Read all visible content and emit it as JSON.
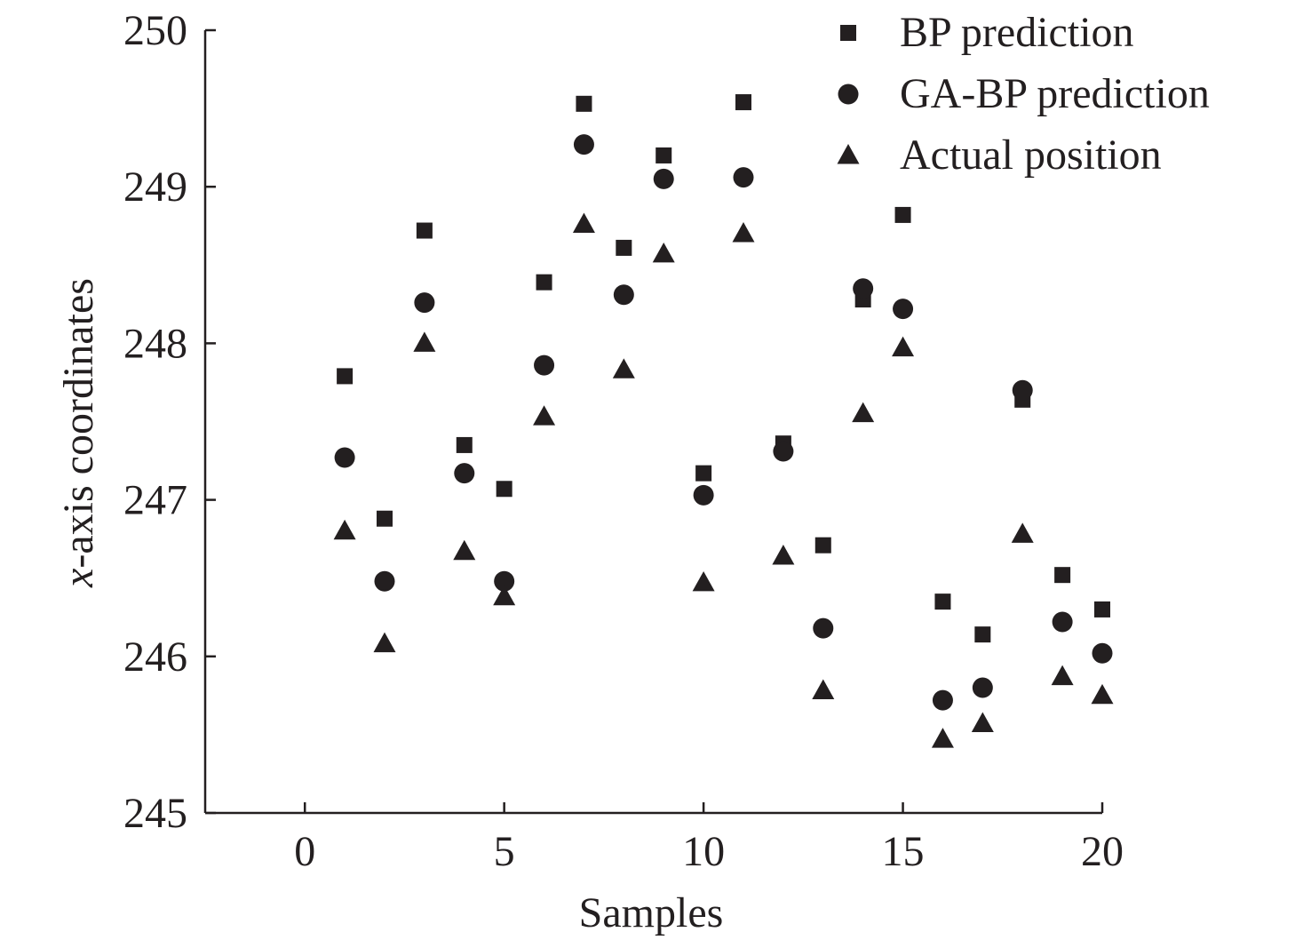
{
  "chart_data": {
    "type": "scatter",
    "title": "",
    "xlabel": "Samples",
    "ylabel_italic": "x",
    "ylabel_rest": "-axis coordinates",
    "xlim": [
      -2.5,
      20
    ],
    "ylim": [
      245,
      250
    ],
    "xticks": [
      0,
      5,
      10,
      15,
      20
    ],
    "yticks": [
      245,
      246,
      247,
      248,
      249,
      250
    ],
    "grid": false,
    "legend_position": "top-right",
    "x": [
      1,
      2,
      3,
      4,
      5,
      6,
      7,
      8,
      9,
      10,
      11,
      12,
      13,
      14,
      15,
      16,
      17,
      18,
      19,
      20
    ],
    "series": [
      {
        "name": "BP prediction",
        "marker": "square",
        "values": [
          247.79,
          246.88,
          248.72,
          247.35,
          247.07,
          248.39,
          249.53,
          248.61,
          249.2,
          247.17,
          249.54,
          247.36,
          246.71,
          248.28,
          248.82,
          246.35,
          246.14,
          247.64,
          246.52,
          246.3
        ]
      },
      {
        "name": "GA-BP prediction",
        "marker": "circle",
        "values": [
          247.27,
          246.48,
          248.26,
          247.17,
          246.48,
          247.86,
          249.27,
          248.31,
          249.05,
          247.03,
          249.06,
          247.31,
          246.18,
          248.35,
          248.22,
          245.72,
          245.8,
          247.7,
          246.22,
          246.02
        ]
      },
      {
        "name": "Actual position",
        "marker": "triangle",
        "values": [
          246.8,
          246.08,
          248.0,
          246.67,
          246.38,
          247.53,
          248.76,
          247.83,
          248.57,
          246.47,
          248.7,
          246.64,
          245.78,
          247.55,
          247.97,
          245.47,
          245.57,
          246.78,
          245.87,
          245.75
        ]
      }
    ],
    "colors": {
      "ink": "#231f20"
    }
  }
}
